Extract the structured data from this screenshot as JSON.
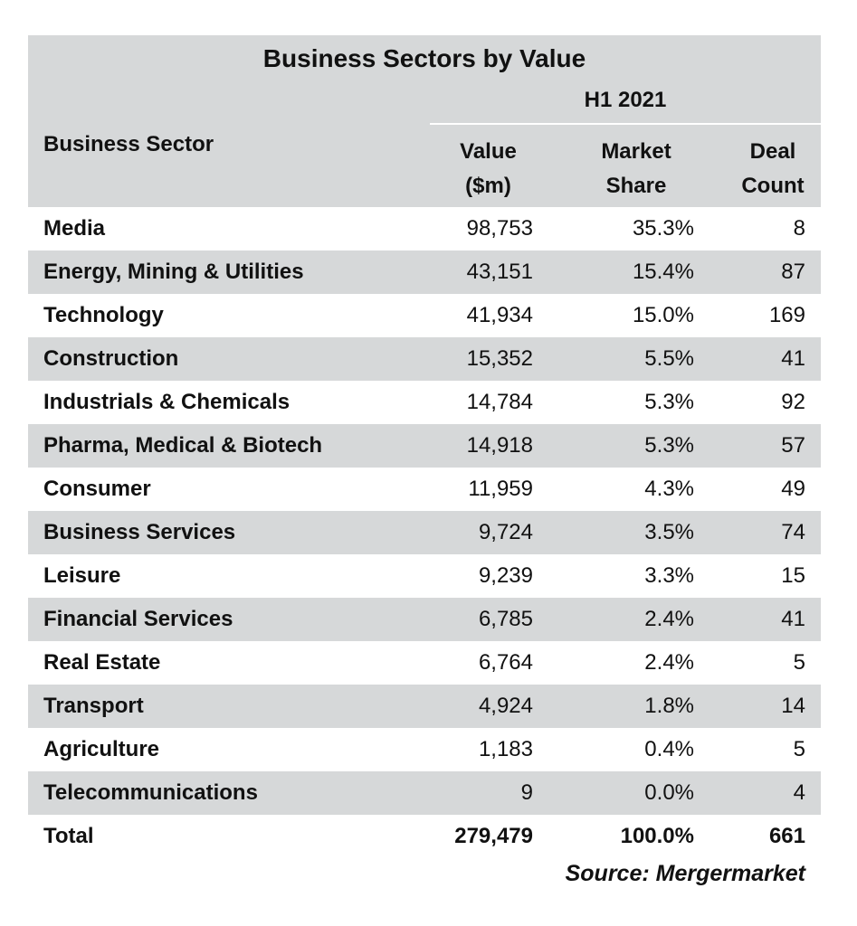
{
  "title": "Business Sectors by Value",
  "period": "H1 2021",
  "headers": {
    "sector": "Business Sector",
    "value_line1": "Value",
    "value_line2": "($m)",
    "share_line1": "Market",
    "share_line2": "Share",
    "count_line1": "Deal",
    "count_line2": "Count"
  },
  "rows": [
    {
      "sector": "Media",
      "value": "98,753",
      "share": "35.3%",
      "count": "8"
    },
    {
      "sector": "Energy, Mining & Utilities",
      "value": "43,151",
      "share": "15.4%",
      "count": "87"
    },
    {
      "sector": "Technology",
      "value": "41,934",
      "share": "15.0%",
      "count": "169"
    },
    {
      "sector": "Construction",
      "value": "15,352",
      "share": "5.5%",
      "count": "41"
    },
    {
      "sector": "Industrials & Chemicals",
      "value": "14,784",
      "share": "5.3%",
      "count": "92"
    },
    {
      "sector": "Pharma, Medical & Biotech",
      "value": "14,918",
      "share": "5.3%",
      "count": "57"
    },
    {
      "sector": "Consumer",
      "value": "11,959",
      "share": "4.3%",
      "count": "49"
    },
    {
      "sector": "Business Services",
      "value": "9,724",
      "share": "3.5%",
      "count": "74"
    },
    {
      "sector": "Leisure",
      "value": "9,239",
      "share": "3.3%",
      "count": "15"
    },
    {
      "sector": "Financial Services",
      "value": "6,785",
      "share": "2.4%",
      "count": "41"
    },
    {
      "sector": "Real Estate",
      "value": "6,764",
      "share": "2.4%",
      "count": "5"
    },
    {
      "sector": "Transport",
      "value": "4,924",
      "share": "1.8%",
      "count": "14"
    },
    {
      "sector": "Agriculture",
      "value": "1,183",
      "share": "0.4%",
      "count": "5"
    },
    {
      "sector": "Telecommunications",
      "value": "9",
      "share": "0.0%",
      "count": "4"
    }
  ],
  "total": {
    "label": "Total",
    "value": "279,479",
    "share": "100.0%",
    "count": "661"
  },
  "source": "Source: Mergermarket",
  "colors": {
    "header_bg": "#d6d8d9",
    "row_shade": "#d6d8d9",
    "text": "#111111"
  }
}
